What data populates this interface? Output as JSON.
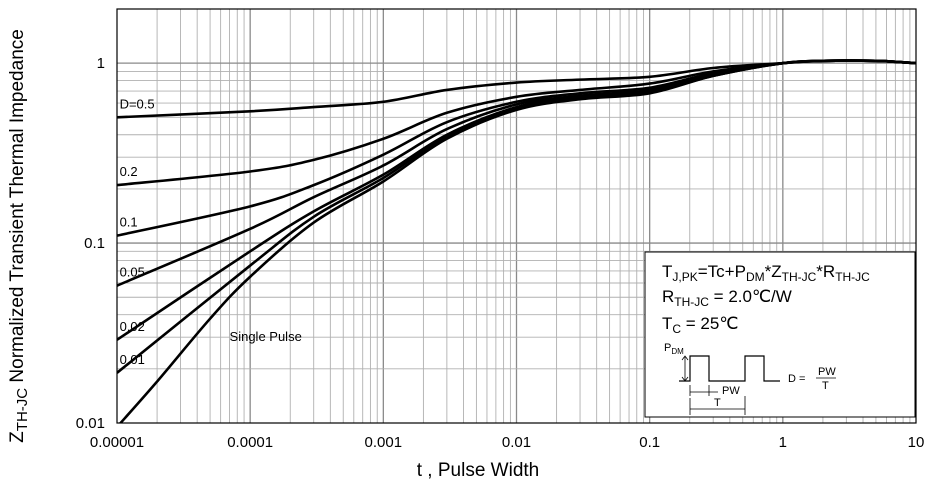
{
  "chart_data": {
    "type": "line",
    "xscale": "log",
    "yscale": "log",
    "xlim": [
      1e-05,
      10
    ],
    "ylim": [
      0.01,
      2
    ],
    "xlabel": "t , Pulse Width",
    "ylabel": {
      "symbol": "Z",
      "subscript": "TH-JC",
      "text": " Normalized Transient Thermal Impedance"
    },
    "x_ticks": [
      {
        "value": 1e-05,
        "label": "0.00001"
      },
      {
        "value": 0.0001,
        "label": "0.0001"
      },
      {
        "value": 0.001,
        "label": "0.001"
      },
      {
        "value": 0.01,
        "label": "0.01"
      },
      {
        "value": 0.1,
        "label": "0.1"
      },
      {
        "value": 1,
        "label": "1"
      },
      {
        "value": 10,
        "label": "10"
      }
    ],
    "y_ticks": [
      {
        "value": 0.01,
        "label": "0.01"
      },
      {
        "value": 0.1,
        "label": "0.1"
      },
      {
        "value": 1,
        "label": "1"
      }
    ],
    "grid": true,
    "series": [
      {
        "name": "D=0.5",
        "label": "D=0.5",
        "x": [
          1e-05,
          0.0001,
          0.0003,
          0.001,
          0.003,
          0.01,
          0.03,
          0.1,
          0.3,
          1,
          2,
          5,
          10
        ],
        "y": [
          0.5,
          0.54,
          0.57,
          0.61,
          0.71,
          0.78,
          0.81,
          0.84,
          0.94,
          1.0,
          1.03,
          1.03,
          1.0
        ]
      },
      {
        "name": "D=0.2",
        "label": "0.2",
        "x": [
          1e-05,
          0.0001,
          0.0003,
          0.001,
          0.003,
          0.01,
          0.03,
          0.1,
          0.3,
          1,
          2,
          5,
          10
        ],
        "y": [
          0.21,
          0.25,
          0.29,
          0.38,
          0.53,
          0.65,
          0.71,
          0.77,
          0.9,
          1.0,
          1.03,
          1.03,
          1.0
        ]
      },
      {
        "name": "D=0.1",
        "label": "0.1",
        "x": [
          1e-05,
          0.0001,
          0.0003,
          0.001,
          0.003,
          0.01,
          0.03,
          0.1,
          0.3,
          1,
          2,
          5,
          10
        ],
        "y": [
          0.11,
          0.16,
          0.21,
          0.31,
          0.47,
          0.61,
          0.68,
          0.73,
          0.88,
          1.0,
          1.03,
          1.03,
          1.0
        ]
      },
      {
        "name": "D=0.05",
        "label": "0.05",
        "x": [
          1e-05,
          0.0001,
          0.0003,
          0.001,
          0.003,
          0.01,
          0.03,
          0.1,
          0.3,
          1,
          2,
          5,
          10
        ],
        "y": [
          0.058,
          0.12,
          0.18,
          0.27,
          0.43,
          0.59,
          0.66,
          0.71,
          0.87,
          1.0,
          1.03,
          1.03,
          1.0
        ]
      },
      {
        "name": "D=0.02",
        "label": "0.02",
        "x": [
          1e-05,
          0.0001,
          0.0003,
          0.001,
          0.003,
          0.01,
          0.03,
          0.1,
          0.3,
          1,
          2,
          5,
          10
        ],
        "y": [
          0.029,
          0.09,
          0.15,
          0.24,
          0.4,
          0.57,
          0.65,
          0.7,
          0.86,
          1.0,
          1.03,
          1.03,
          1.0
        ]
      },
      {
        "name": "D=0.01",
        "label": "0.01",
        "x": [
          1e-05,
          0.0001,
          0.0003,
          0.001,
          0.003,
          0.01,
          0.03,
          0.1,
          0.3,
          1,
          2,
          5,
          10
        ],
        "y": [
          0.019,
          0.075,
          0.14,
          0.23,
          0.39,
          0.56,
          0.64,
          0.69,
          0.85,
          1.0,
          1.03,
          1.03,
          1.0
        ]
      },
      {
        "name": "Single Pulse",
        "label": "Single Pulse",
        "x": [
          1e-05,
          2e-05,
          5e-05,
          0.0001,
          0.0003,
          0.001,
          0.003,
          0.01,
          0.03,
          0.1,
          0.3,
          1,
          2,
          5,
          10
        ],
        "y": [
          0.0095,
          0.017,
          0.038,
          0.065,
          0.13,
          0.22,
          0.38,
          0.55,
          0.63,
          0.68,
          0.85,
          1.0,
          1.03,
          1.03,
          1.0
        ]
      }
    ],
    "annotation": {
      "line1": {
        "a": "T",
        "a_sub": "J,PK",
        "b": "=Tc+P",
        "b_sub": "DM",
        "c": "*Z",
        "c_sub": "TH-JC",
        "d": "*R",
        "d_sub": "TH-JC"
      },
      "line2": {
        "a": "R",
        "a_sub": "TH-JC",
        "b": " = 2.0℃/W"
      },
      "line3": {
        "a": "T",
        "a_sub": "C",
        "b": " = 25℃"
      },
      "waveform": {
        "pdm": "P",
        "pdm_sub": "DM",
        "pw": "PW",
        "t": "T",
        "d_eq": "D =",
        "frac_num": "PW",
        "frac_den": "T"
      }
    }
  }
}
